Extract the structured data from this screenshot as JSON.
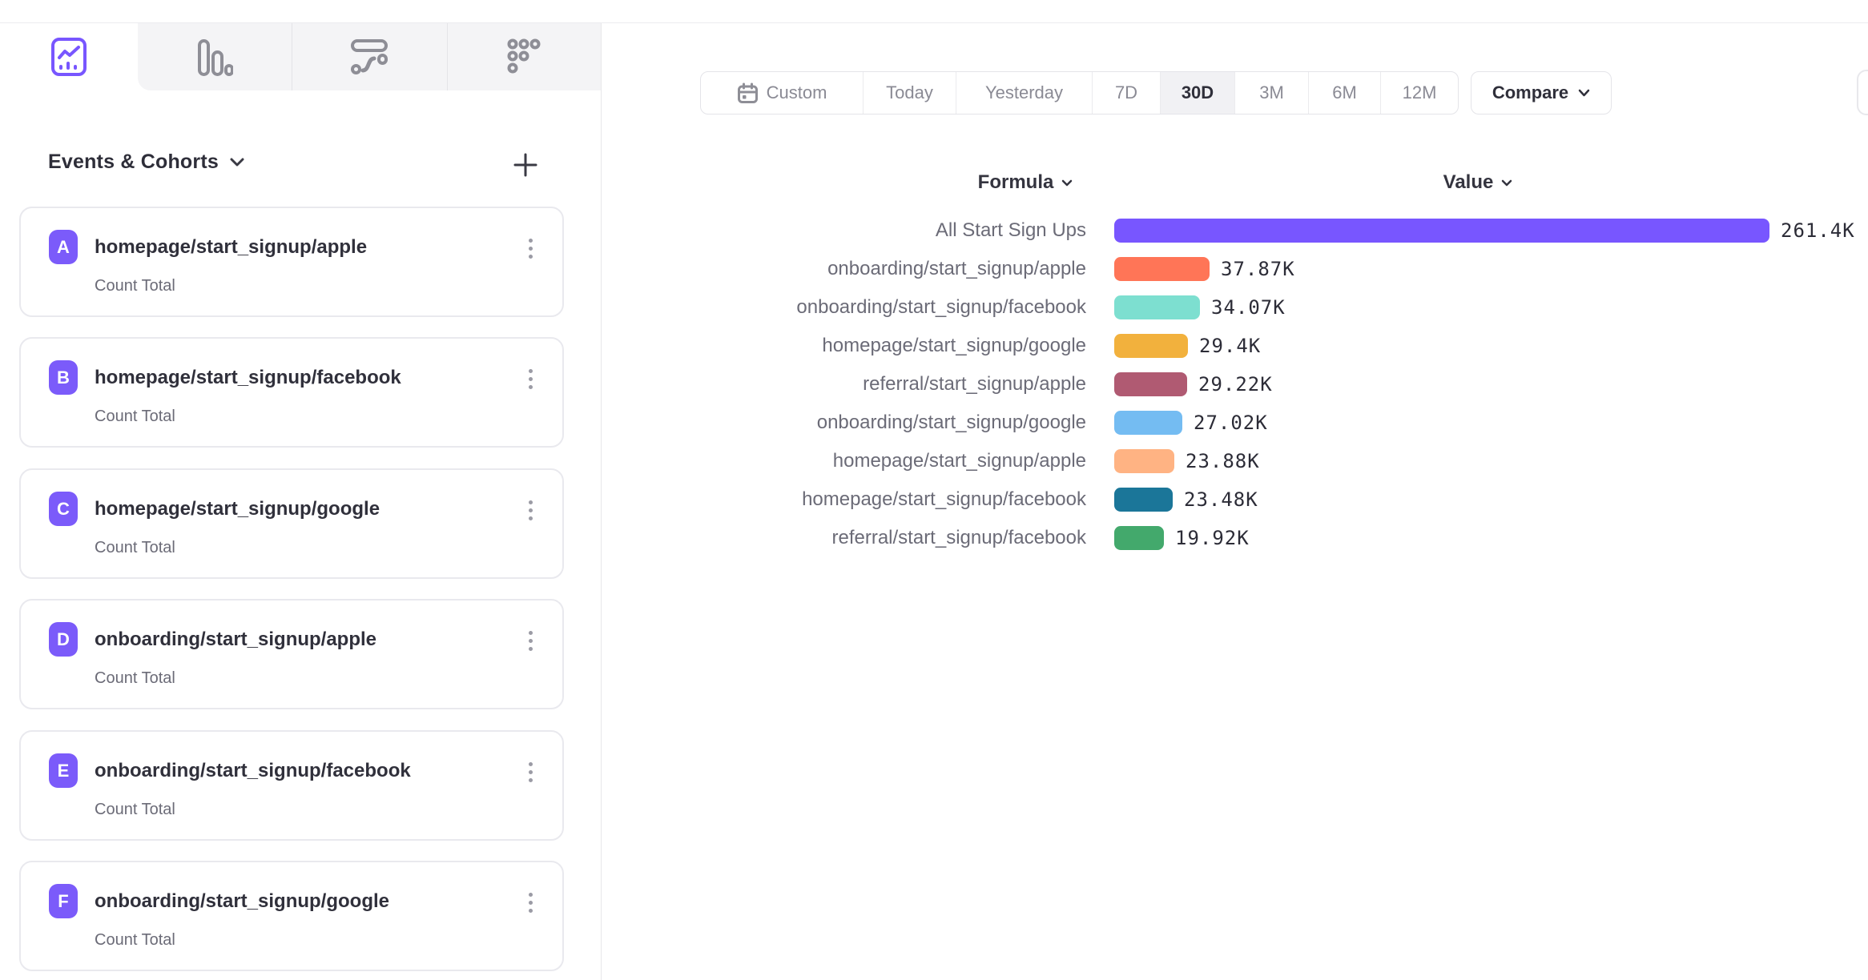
{
  "tabs": {
    "items": [
      {
        "id": "insights",
        "icon": "line-chart-icon",
        "active": true
      },
      {
        "id": "bars",
        "icon": "bar-chart-icon",
        "active": false
      },
      {
        "id": "flows",
        "icon": "flow-icon",
        "active": false
      },
      {
        "id": "retention",
        "icon": "retention-grid-icon",
        "active": false
      }
    ],
    "active_color": "#7856FF"
  },
  "sidebar": {
    "title": "Events & Cohorts",
    "add_label": "+",
    "badge_color": "#7B5BFA",
    "items": [
      {
        "letter": "A",
        "name": "homepage/start_signup/apple",
        "metric": "Count Total"
      },
      {
        "letter": "B",
        "name": "homepage/start_signup/facebook",
        "metric": "Count Total"
      },
      {
        "letter": "C",
        "name": "homepage/start_signup/google",
        "metric": "Count Total"
      },
      {
        "letter": "D",
        "name": "onboarding/start_signup/apple",
        "metric": "Count Total"
      },
      {
        "letter": "E",
        "name": "onboarding/start_signup/facebook",
        "metric": "Count Total"
      },
      {
        "letter": "F",
        "name": "onboarding/start_signup/google",
        "metric": "Count Total"
      }
    ]
  },
  "toolbar": {
    "date_ranges": [
      {
        "label": "Custom",
        "icon": "calendar-icon",
        "active": false
      },
      {
        "label": "Today",
        "active": false
      },
      {
        "label": "Yesterday",
        "active": false
      },
      {
        "label": "7D",
        "active": false
      },
      {
        "label": "30D",
        "active": true
      },
      {
        "label": "3M",
        "active": false
      },
      {
        "label": "6M",
        "active": false
      },
      {
        "label": "12M",
        "active": false
      }
    ],
    "compare_label": "Compare"
  },
  "chart_data": {
    "type": "bar",
    "orientation": "horizontal",
    "column_headers": {
      "formula": "Formula",
      "value": "Value"
    },
    "categories": [
      "All Start Sign Ups",
      "onboarding/start_signup/apple",
      "onboarding/start_signup/facebook",
      "homepage/start_signup/google",
      "referral/start_signup/apple",
      "onboarding/start_signup/google",
      "homepage/start_signup/apple",
      "homepage/start_signup/facebook",
      "referral/start_signup/facebook"
    ],
    "values": [
      261400,
      37870,
      34070,
      29400,
      29220,
      27020,
      23880,
      23480,
      19920
    ],
    "value_labels": [
      "261.4K",
      "37.87K",
      "34.07K",
      "29.4K",
      "29.22K",
      "27.02K",
      "23.88K",
      "23.48K",
      "19.92K"
    ],
    "colors": [
      "#7856FF",
      "#FF7557",
      "#7DDFD0",
      "#F2B13D",
      "#B05A72",
      "#74BCF2",
      "#FFB383",
      "#1B7699",
      "#43A96C"
    ],
    "xlim": [
      0,
      261400
    ],
    "grid": false,
    "legend": "none"
  }
}
